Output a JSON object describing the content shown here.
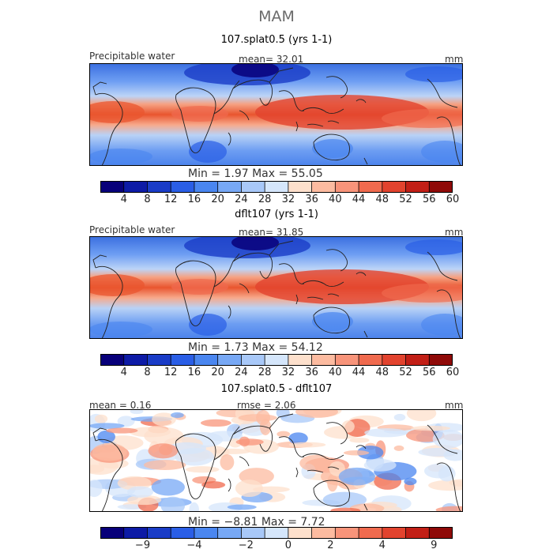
{
  "figure": {
    "season": "MAM",
    "panels": [
      {
        "title": "107.splat0.5 (yrs 1-1)",
        "field_name": "Precipitable water",
        "stat_text": "mean=   32.01",
        "units": "mm",
        "minmax_text": "Min =    1.97  Max =   55.05",
        "colorbar": {
          "colors": [
            "#08007a",
            "#0d1ba6",
            "#1a3cc7",
            "#2a5ee6",
            "#4a86f0",
            "#77a8f5",
            "#a8c8f8",
            "#d5e6fb",
            "#fde0cc",
            "#fcbba0",
            "#f8947a",
            "#f06a4e",
            "#e2432e",
            "#c21f16",
            "#8f0a08"
          ],
          "tick_labels": [
            "4",
            "8",
            "12",
            "16",
            "20",
            "24",
            "28",
            "32",
            "36",
            "40",
            "44",
            "48",
            "52",
            "56",
            "60"
          ]
        }
      },
      {
        "title": "dflt107 (yrs 1-1)",
        "field_name": "Precipitable water",
        "stat_text": "mean=   31.85",
        "units": "mm",
        "minmax_text": "Min =    1.73  Max =   54.12",
        "colorbar": {
          "colors": [
            "#08007a",
            "#0d1ba6",
            "#1a3cc7",
            "#2a5ee6",
            "#4a86f0",
            "#77a8f5",
            "#a8c8f8",
            "#d5e6fb",
            "#fde0cc",
            "#fcbba0",
            "#f8947a",
            "#f06a4e",
            "#e2432e",
            "#c21f16",
            "#8f0a08"
          ],
          "tick_labels": [
            "4",
            "8",
            "12",
            "16",
            "20",
            "24",
            "28",
            "32",
            "36",
            "40",
            "44",
            "48",
            "52",
            "56",
            "60"
          ]
        }
      },
      {
        "title": "107.splat0.5 - dflt107",
        "field_name": "",
        "stat_text": "mean =   0.16",
        "stat2_text": "rmse =   2.06",
        "units": "mm",
        "minmax_text": "Min =   −8.81  Max =    7.72",
        "colorbar": {
          "colors": [
            "#08007a",
            "#0d1ba6",
            "#1a3cc7",
            "#2a5ee6",
            "#4a86f0",
            "#77a8f5",
            "#a8c8f8",
            "#d5e6fb",
            "#fde0cc",
            "#fcbba0",
            "#f8947a",
            "#f06a4e",
            "#e2432e",
            "#c21f16",
            "#8f0a08"
          ],
          "tick_labels": [
            "−9",
            "−4",
            "−2",
            "0",
            "2",
            "4",
            "9"
          ]
        }
      }
    ]
  }
}
